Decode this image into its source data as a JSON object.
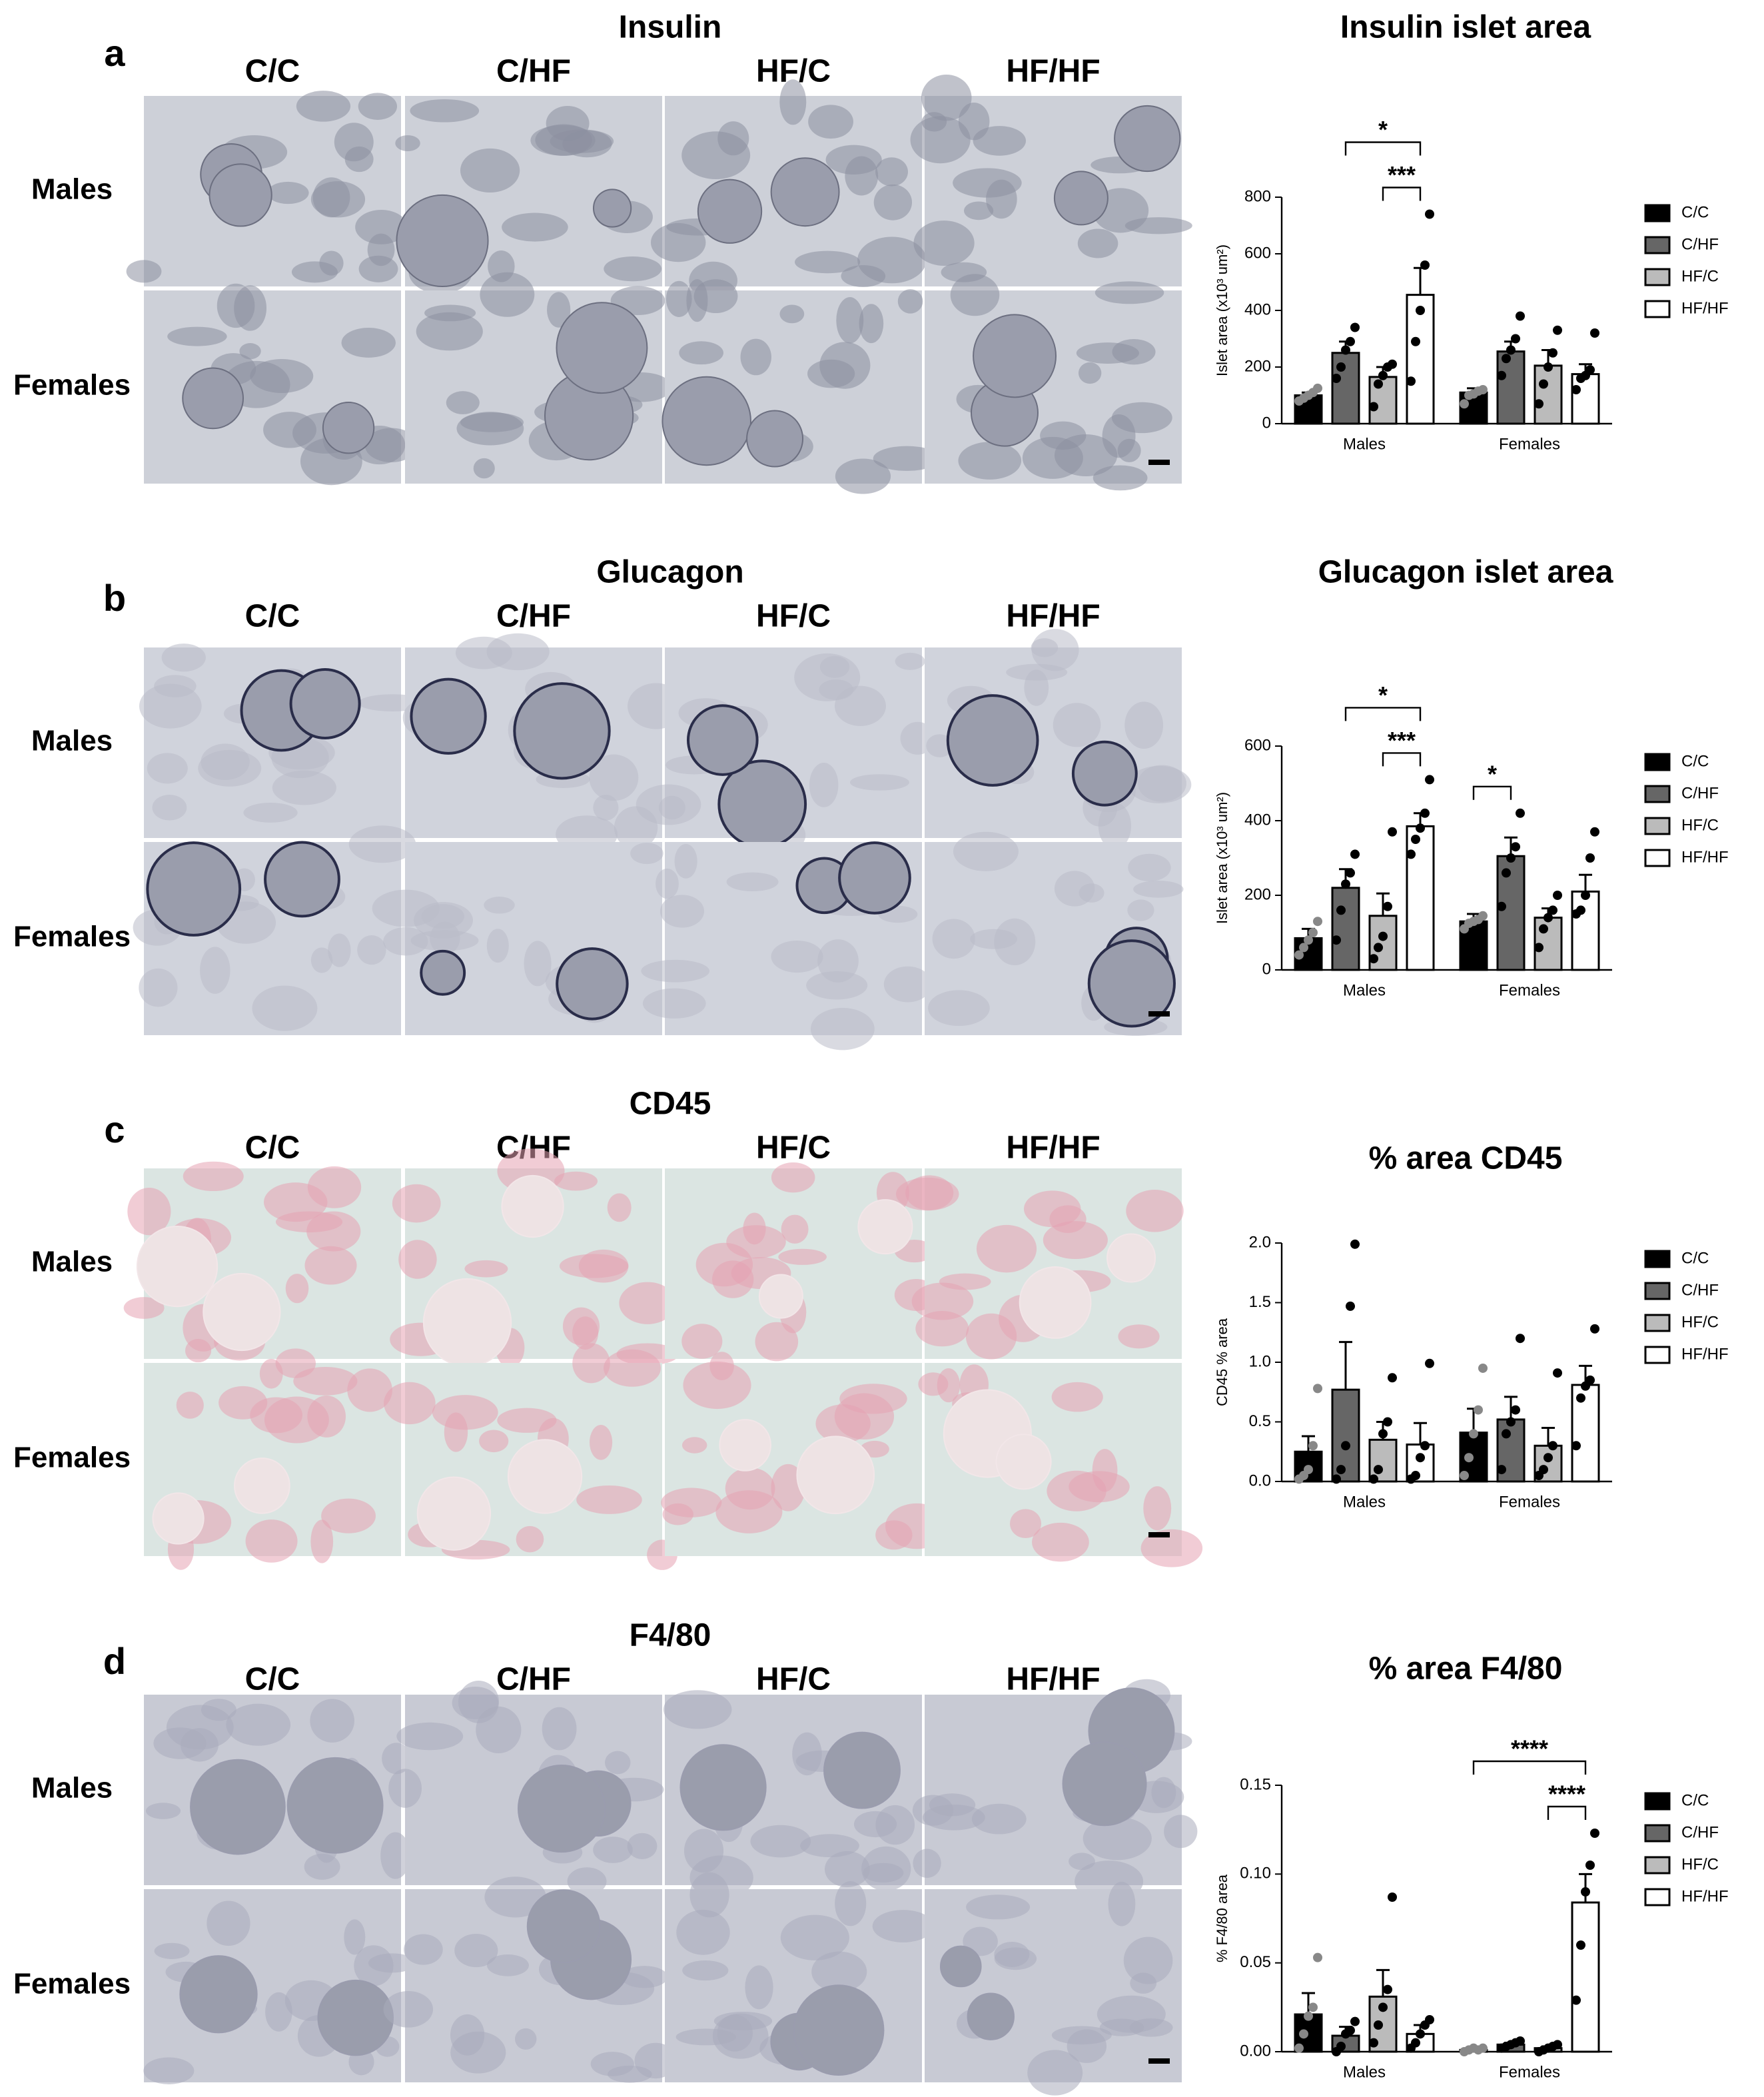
{
  "panels": [
    {
      "letter": "a",
      "stain": "Insulin",
      "columns": [
        "C/C",
        "C/HF",
        "HF/C",
        "HF/HF"
      ],
      "rows": [
        "Males",
        "Females"
      ]
    },
    {
      "letter": "b",
      "stain": "Glucagon",
      "columns": [
        "C/C",
        "C/HF",
        "HF/C",
        "HF/HF"
      ],
      "rows": [
        "Males",
        "Females"
      ]
    },
    {
      "letter": "c",
      "stain": "CD45",
      "columns": [
        "C/C",
        "C/HF",
        "HF/C",
        "HF/HF"
      ],
      "rows": [
        "Males",
        "Females"
      ]
    },
    {
      "letter": "d",
      "stain": "F4/80",
      "columns": [
        "C/C",
        "C/HF",
        "HF/C",
        "HF/HF"
      ],
      "rows": [
        "Males",
        "Females"
      ]
    }
  ],
  "chart_data": [
    {
      "type": "bar",
      "title": "Insulin islet area",
      "ylabel": "Islet area (x10³ um²)",
      "categories": [
        "Males",
        "Females"
      ],
      "ylim": [
        0,
        800
      ],
      "yticks": [
        0,
        200,
        400,
        600,
        800
      ],
      "series": [
        {
          "name": "C/C",
          "color": "#000000",
          "values": [
            100,
            110
          ],
          "errors": [
            10,
            15
          ],
          "points": [
            [
              80,
              90,
              100,
              110,
              125
            ],
            [
              70,
              100,
              105,
              115,
              120
            ]
          ]
        },
        {
          "name": "C/HF",
          "color": "#666666",
          "values": [
            250,
            255
          ],
          "errors": [
            40,
            35
          ],
          "points": [
            [
              160,
              200,
              260,
              290,
              340
            ],
            [
              170,
              230,
              260,
              300,
              380
            ]
          ]
        },
        {
          "name": "HF/C",
          "color": "#bbbbbb",
          "values": [
            165,
            205
          ],
          "errors": [
            35,
            55
          ],
          "points": [
            [
              60,
              140,
              170,
              200,
              210
            ],
            [
              70,
              140,
              200,
              250,
              330
            ]
          ]
        },
        {
          "name": "HF/HF",
          "color": "#ffffff",
          "values": [
            455,
            175
          ],
          "errors": [
            95,
            35
          ],
          "points": [
            [
              150,
              290,
              400,
              560,
              740
            ],
            [
              120,
              160,
              170,
              190,
              320
            ]
          ]
        }
      ],
      "annotations": [
        {
          "text": "*",
          "category": "Males",
          "groups": [
            "C/HF",
            "HF/HF"
          ]
        },
        {
          "text": "***",
          "category": "Males",
          "groups": [
            "HF/C",
            "HF/HF"
          ]
        }
      ]
    },
    {
      "type": "bar",
      "title": "Glucagon islet area",
      "ylabel": "Islet area (x10³ um²)",
      "categories": [
        "Males",
        "Females"
      ],
      "ylim": [
        0,
        600
      ],
      "yticks": [
        0,
        200,
        400,
        600
      ],
      "series": [
        {
          "name": "C/C",
          "color": "#000000",
          "values": [
            85,
            130
          ],
          "errors": [
            25,
            20
          ],
          "points": [
            [
              40,
              60,
              80,
              100,
              130
            ],
            [
              110,
              125,
              130,
              135,
              145
            ]
          ]
        },
        {
          "name": "C/HF",
          "color": "#666666",
          "values": [
            220,
            305
          ],
          "errors": [
            50,
            50
          ],
          "points": [
            [
              80,
              160,
              230,
              260,
              310
            ],
            [
              170,
              260,
              300,
              330,
              420
            ]
          ]
        },
        {
          "name": "HF/C",
          "color": "#bbbbbb",
          "values": [
            145,
            140
          ],
          "errors": [
            60,
            25
          ],
          "points": [
            [
              30,
              60,
              90,
              170,
              370
            ],
            [
              60,
              110,
              140,
              160,
              200
            ]
          ]
        },
        {
          "name": "HF/HF",
          "color": "#ffffff",
          "values": [
            385,
            210
          ],
          "errors": [
            35,
            45
          ],
          "points": [
            [
              310,
              350,
              380,
              420,
              510
            ],
            [
              150,
              160,
              200,
              300,
              370
            ]
          ]
        }
      ],
      "annotations": [
        {
          "text": "*",
          "category": "Males",
          "groups": [
            "C/HF",
            "HF/HF"
          ]
        },
        {
          "text": "***",
          "category": "Males",
          "groups": [
            "HF/C",
            "HF/HF"
          ]
        },
        {
          "text": "*",
          "category": "Females",
          "groups": [
            "C/C",
            "C/HF"
          ]
        }
      ]
    },
    {
      "type": "bar",
      "title": "% area CD45",
      "ylabel": "CD45 % area",
      "categories": [
        "Males",
        "Females"
      ],
      "ylim": [
        0,
        2
      ],
      "yticks": [
        {
          "value": 0,
          "label": "0.0"
        },
        0.5,
        {
          "value": 1,
          "label": "1.0"
        },
        1.5,
        {
          "value": 2,
          "label": "2.0"
        }
      ],
      "series": [
        {
          "name": "C/C",
          "color": "#000000",
          "values": [
            0.25,
            0.41
          ],
          "errors": [
            0.13,
            0.2
          ],
          "points": [
            [
              0.02,
              0.05,
              0.1,
              0.3,
              0.78
            ],
            [
              0.05,
              0.2,
              0.4,
              0.6,
              0.95
            ]
          ]
        },
        {
          "name": "C/HF",
          "color": "#666666",
          "values": [
            0.77,
            0.52
          ],
          "errors": [
            0.4,
            0.19
          ],
          "points": [
            [
              0.02,
              0.1,
              0.3,
              1.47,
              1.99
            ],
            [
              0.1,
              0.4,
              0.5,
              0.6,
              1.2
            ]
          ]
        },
        {
          "name": "HF/C",
          "color": "#bbbbbb",
          "values": [
            0.35,
            0.3
          ],
          "errors": [
            0.15,
            0.15
          ],
          "points": [
            [
              0.02,
              0.1,
              0.4,
              0.5,
              0.87
            ],
            [
              0.05,
              0.1,
              0.2,
              0.3,
              0.91
            ]
          ]
        },
        {
          "name": "HF/HF",
          "color": "#ffffff",
          "values": [
            0.31,
            0.81
          ],
          "errors": [
            0.18,
            0.16
          ],
          "points": [
            [
              0.02,
              0.05,
              0.2,
              0.3,
              0.99
            ],
            [
              0.3,
              0.7,
              0.8,
              0.85,
              1.28
            ]
          ]
        }
      ],
      "annotations": []
    },
    {
      "type": "bar",
      "title": "% area F4/80",
      "ylabel": "% F4/80 area",
      "categories": [
        "Males",
        "Females"
      ],
      "ylim": [
        0,
        0.15
      ],
      "yticks": [
        {
          "value": 0,
          "label": "0.00"
        },
        0.05,
        {
          "value": 0.1,
          "label": "0.10"
        },
        0.15
      ],
      "series": [
        {
          "name": "C/C",
          "color": "#000000",
          "values": [
            0.021,
            0.001
          ],
          "errors": [
            0.012,
            0.0005
          ],
          "points": [
            [
              0.002,
              0.01,
              0.02,
              0.025,
              0.053
            ],
            [
              0,
              0.001,
              0.002,
              0.001,
              0.002
            ]
          ]
        },
        {
          "name": "C/HF",
          "color": "#666666",
          "values": [
            0.009,
            0.004
          ],
          "errors": [
            0.005,
            0.001
          ],
          "points": [
            [
              0,
              0.003,
              0.01,
              0.012,
              0.017
            ],
            [
              0.002,
              0.003,
              0.004,
              0.005,
              0.006
            ]
          ]
        },
        {
          "name": "HF/C",
          "color": "#bbbbbb",
          "values": [
            0.031,
            0.002
          ],
          "errors": [
            0.015,
            0.001
          ],
          "points": [
            [
              0.005,
              0.015,
              0.025,
              0.035,
              0.087
            ],
            [
              0,
              0.001,
              0.002,
              0.003,
              0.004
            ]
          ]
        },
        {
          "name": "HF/HF",
          "color": "#ffffff",
          "values": [
            0.01,
            0.084
          ],
          "errors": [
            0.005,
            0.016
          ],
          "points": [
            [
              0.002,
              0.005,
              0.01,
              0.015,
              0.018
            ],
            [
              0.029,
              0.06,
              0.09,
              0.105,
              0.123
            ]
          ]
        }
      ],
      "annotations": [
        {
          "text": "****",
          "category": "Females",
          "groups": [
            "C/C",
            "HF/HF"
          ]
        },
        {
          "text": "****",
          "category": "Females",
          "groups": [
            "HF/C",
            "HF/HF"
          ]
        }
      ]
    }
  ]
}
